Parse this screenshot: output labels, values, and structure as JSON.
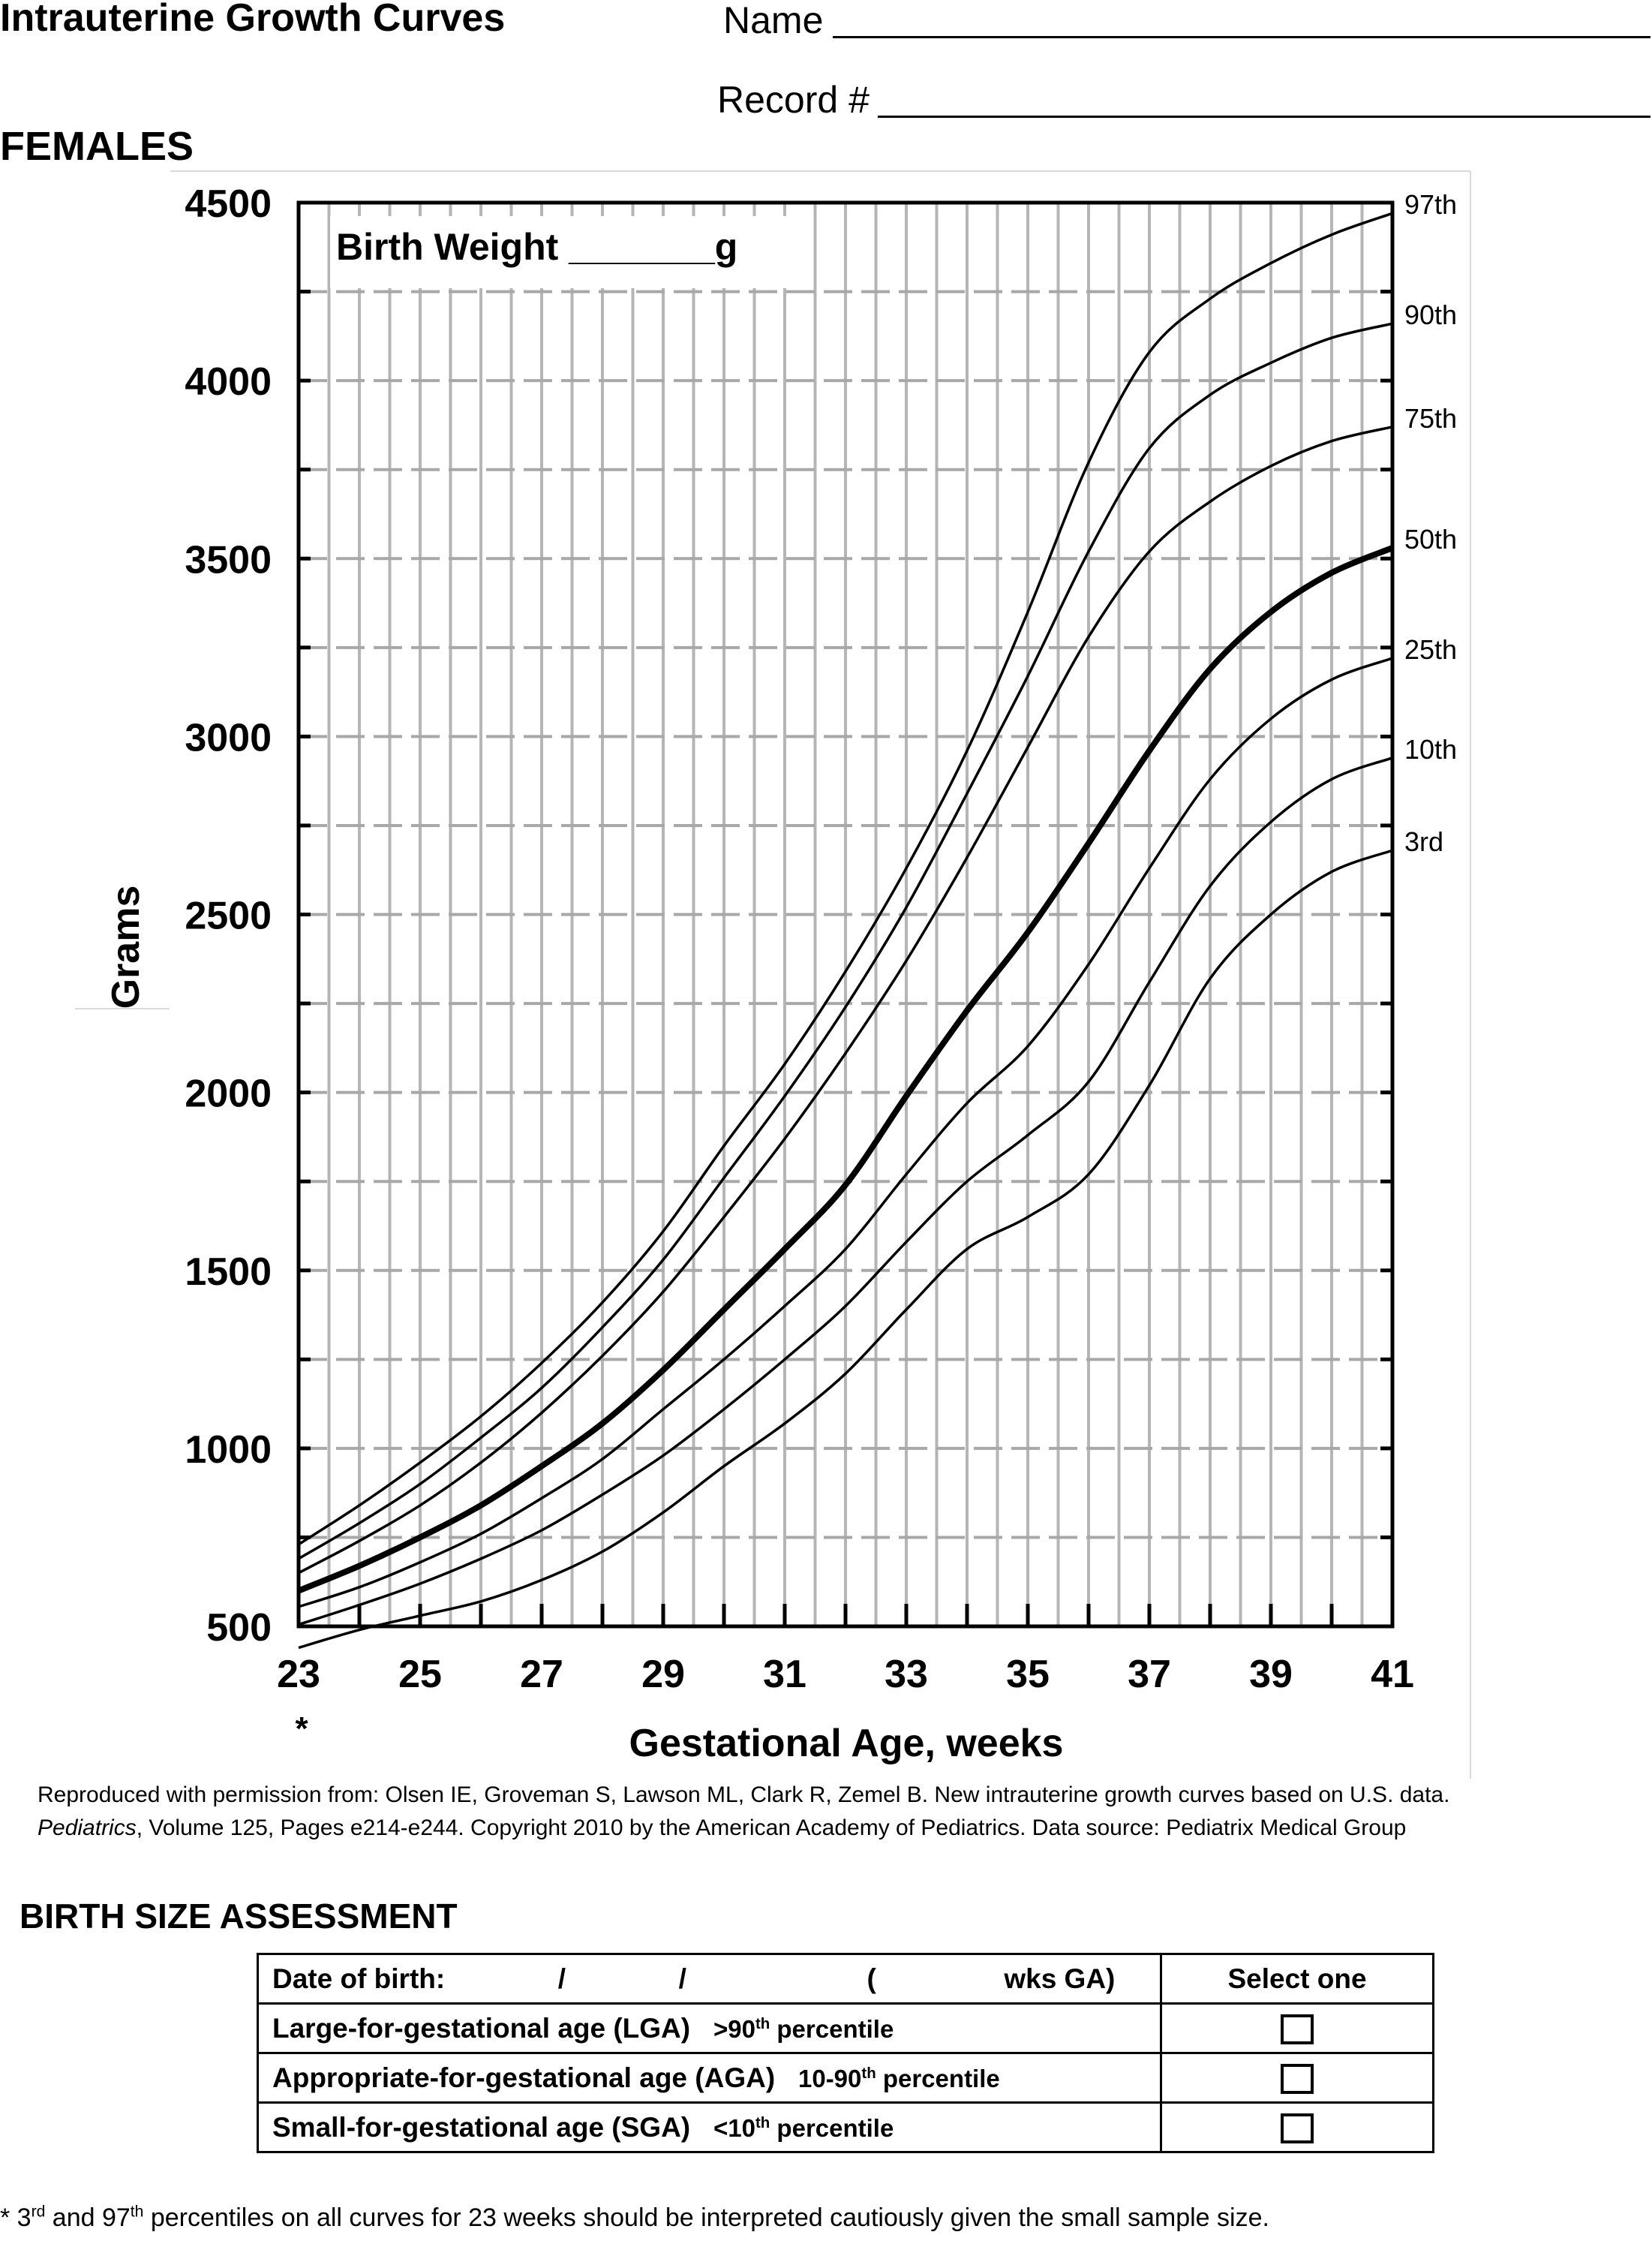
{
  "header": {
    "title": "Intrauterine Growth Curves",
    "name_label": "Name",
    "record_label": "Record #",
    "sex": "FEMALES"
  },
  "chart_data": {
    "type": "line",
    "title": "",
    "xlabel": "Gestational Age, weeks",
    "ylabel": "Grams",
    "xlim": [
      23,
      41
    ],
    "ylim": [
      500,
      4500
    ],
    "x_ticks": [
      "23",
      "25",
      "27",
      "29",
      "31",
      "33",
      "35",
      "37",
      "39",
      "41"
    ],
    "y_ticks": [
      "500",
      "1000",
      "1500",
      "2000",
      "2500",
      "3000",
      "3500",
      "4000",
      "4500"
    ],
    "x_tick_note": "*",
    "grid": true,
    "annotation": "Birth Weight _______g",
    "x": [
      23,
      24,
      25,
      26,
      27,
      28,
      29,
      30,
      31,
      32,
      33,
      34,
      35,
      36,
      37,
      38,
      39,
      40,
      41
    ],
    "series": [
      {
        "name": "97th",
        "values": [
          730,
          840,
          960,
          1090,
          1240,
          1410,
          1610,
          1850,
          2080,
          2340,
          2630,
          2960,
          3350,
          3770,
          4080,
          4230,
          4330,
          4410,
          4470
        ]
      },
      {
        "name": "90th",
        "values": [
          690,
          790,
          900,
          1030,
          1170,
          1340,
          1530,
          1760,
          1990,
          2240,
          2520,
          2840,
          3170,
          3520,
          3810,
          3960,
          4050,
          4120,
          4160
        ]
      },
      {
        "name": "75th",
        "values": [
          650,
          740,
          840,
          960,
          1100,
          1260,
          1440,
          1650,
          1870,
          2110,
          2370,
          2660,
          2970,
          3280,
          3520,
          3660,
          3760,
          3830,
          3870
        ]
      },
      {
        "name": "50th",
        "values": [
          600,
          670,
          750,
          840,
          950,
          1070,
          1220,
          1390,
          1560,
          1740,
          1990,
          2230,
          2450,
          2700,
          2960,
          3190,
          3350,
          3460,
          3530
        ]
      },
      {
        "name": "25th",
        "values": [
          555,
          610,
          680,
          760,
          860,
          970,
          1110,
          1250,
          1400,
          1560,
          1770,
          1970,
          2130,
          2360,
          2630,
          2880,
          3050,
          3160,
          3220
        ]
      },
      {
        "name": "10th",
        "values": [
          505,
          560,
          620,
          690,
          770,
          870,
          980,
          1110,
          1250,
          1400,
          1580,
          1750,
          1880,
          2030,
          2310,
          2580,
          2760,
          2880,
          2940
        ]
      },
      {
        "name": "3rd",
        "values": [
          440,
          490,
          530,
          570,
          630,
          710,
          820,
          950,
          1070,
          1210,
          1390,
          1560,
          1650,
          1770,
          2020,
          2320,
          2500,
          2620,
          2680
        ]
      }
    ]
  },
  "citation": {
    "line1": "Reproduced with permission from: Olsen IE, Groveman S, Lawson ML, Clark R, Zemel B. New intrauterine growth curves based on U.S. data.",
    "journal": "Pediatrics",
    "line2_rest": ", Volume 125, Pages e214-e244. Copyright 2010 by the American Academy of Pediatrics.  Data source: Pediatrix Medical Group"
  },
  "assessment": {
    "title": "BIRTH SIZE ASSESSMENT",
    "dob_label": "Date of birth:",
    "dob_sep1": "/",
    "dob_sep2": "/",
    "dob_open": "(",
    "dob_wks": "wks GA)",
    "select_header": "Select one",
    "rows": [
      {
        "label": "Large-for-gestational age (LGA)",
        "crit_pre": ">90",
        "crit_sup": "th",
        "crit_post": " percentile"
      },
      {
        "label": "Appropriate-for-gestational age (AGA)",
        "crit_pre": "10-90",
        "crit_sup": "th",
        "crit_post": " percentile"
      },
      {
        "label": "Small-for-gestational age (SGA)",
        "crit_pre": "<10",
        "crit_sup": "th",
        "crit_post": " percentile"
      }
    ]
  },
  "footnote": {
    "star": "* 3",
    "sup1": "rd",
    "mid": " and 97",
    "sup2": "th",
    "rest": " percentiles on all curves for 23 weeks should be interpreted cautiously given the small sample size."
  }
}
